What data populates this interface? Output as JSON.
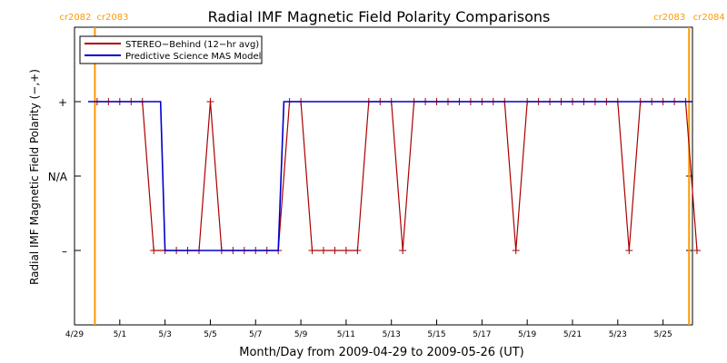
{
  "chart_data": {
    "type": "line",
    "title": "Radial IMF Magnetic Field Polarity Comparisons",
    "xlabel": "Month/Day from 2009-04-29 to 2009-05-26 (UT)",
    "ylabel": "Radial IMF Magnetic Field Polarity (−,+)",
    "x_start_date": "2009-04-29",
    "xlim_days": [
      0,
      27.3
    ],
    "y_ticks": [
      {
        "value": 1,
        "label": "+"
      },
      {
        "value": 0,
        "label": "N/A"
      },
      {
        "value": -1,
        "label": "–"
      }
    ],
    "ylim": [
      -2,
      2
    ],
    "x_ticks": [
      {
        "day": 0,
        "label": "4/29"
      },
      {
        "day": 2,
        "label": "5/1"
      },
      {
        "day": 4,
        "label": "5/3"
      },
      {
        "day": 6,
        "label": "5/5"
      },
      {
        "day": 8,
        "label": "5/7"
      },
      {
        "day": 10,
        "label": "5/9"
      },
      {
        "day": 12,
        "label": "5/11"
      },
      {
        "day": 14,
        "label": "5/13"
      },
      {
        "day": 16,
        "label": "5/15"
      },
      {
        "day": 18,
        "label": "5/17"
      },
      {
        "day": 20,
        "label": "5/19"
      },
      {
        "day": 22,
        "label": "5/21"
      },
      {
        "day": 24,
        "label": "5/23"
      },
      {
        "day": 26,
        "label": "5/25"
      }
    ],
    "carrington_markers": [
      {
        "day": 0.9,
        "left_label": "cr2082",
        "right_label": "cr2083",
        "color": "#ff9900"
      },
      {
        "day": 27.15,
        "left_label": "cr2083",
        "right_label": "cr2084",
        "color": "#ff9900"
      }
    ],
    "legend": {
      "position": "top-left"
    },
    "series": [
      {
        "name": "STEREO−Behind (12−hr avg)",
        "color": "#aa0000",
        "marker": "+",
        "points": [
          [
            1.0,
            1
          ],
          [
            1.5,
            1
          ],
          [
            2.0,
            1
          ],
          [
            2.5,
            1
          ],
          [
            3.0,
            1
          ],
          [
            3.5,
            -1
          ],
          [
            4.0,
            -1
          ],
          [
            4.5,
            -1
          ],
          [
            5.0,
            -1
          ],
          [
            5.5,
            -1
          ],
          [
            6.0,
            1
          ],
          [
            6.5,
            -1
          ],
          [
            7.0,
            -1
          ],
          [
            7.5,
            -1
          ],
          [
            8.0,
            -1
          ],
          [
            8.5,
            -1
          ],
          [
            9.0,
            -1
          ],
          [
            9.5,
            1
          ],
          [
            10.0,
            1
          ],
          [
            10.5,
            -1
          ],
          [
            11.0,
            -1
          ],
          [
            11.5,
            -1
          ],
          [
            12.0,
            -1
          ],
          [
            12.5,
            -1
          ],
          [
            13.0,
            1
          ],
          [
            13.5,
            1
          ],
          [
            14.0,
            1
          ],
          [
            14.5,
            -1
          ],
          [
            15.0,
            1
          ],
          [
            15.5,
            1
          ],
          [
            16.0,
            1
          ],
          [
            16.5,
            1
          ],
          [
            17.0,
            1
          ],
          [
            17.5,
            1
          ],
          [
            18.0,
            1
          ],
          [
            18.5,
            1
          ],
          [
            19.0,
            1
          ],
          [
            19.5,
            -1
          ],
          [
            20.0,
            1
          ],
          [
            20.5,
            1
          ],
          [
            21.0,
            1
          ],
          [
            21.5,
            1
          ],
          [
            22.0,
            1
          ],
          [
            22.5,
            1
          ],
          [
            23.0,
            1
          ],
          [
            23.5,
            1
          ],
          [
            24.0,
            1
          ],
          [
            24.5,
            -1
          ],
          [
            25.0,
            1
          ],
          [
            25.5,
            1
          ],
          [
            26.0,
            1
          ],
          [
            26.5,
            1
          ],
          [
            27.0,
            1
          ],
          [
            27.5,
            -1
          ]
        ]
      },
      {
        "name": "Predictive Science MAS Model",
        "color": "#0000cc",
        "marker": "none",
        "points": [
          [
            0.6,
            1
          ],
          [
            3.8,
            1
          ],
          [
            4.0,
            -1
          ],
          [
            9.0,
            -1
          ],
          [
            9.25,
            1
          ],
          [
            27.3,
            1
          ]
        ]
      }
    ]
  }
}
